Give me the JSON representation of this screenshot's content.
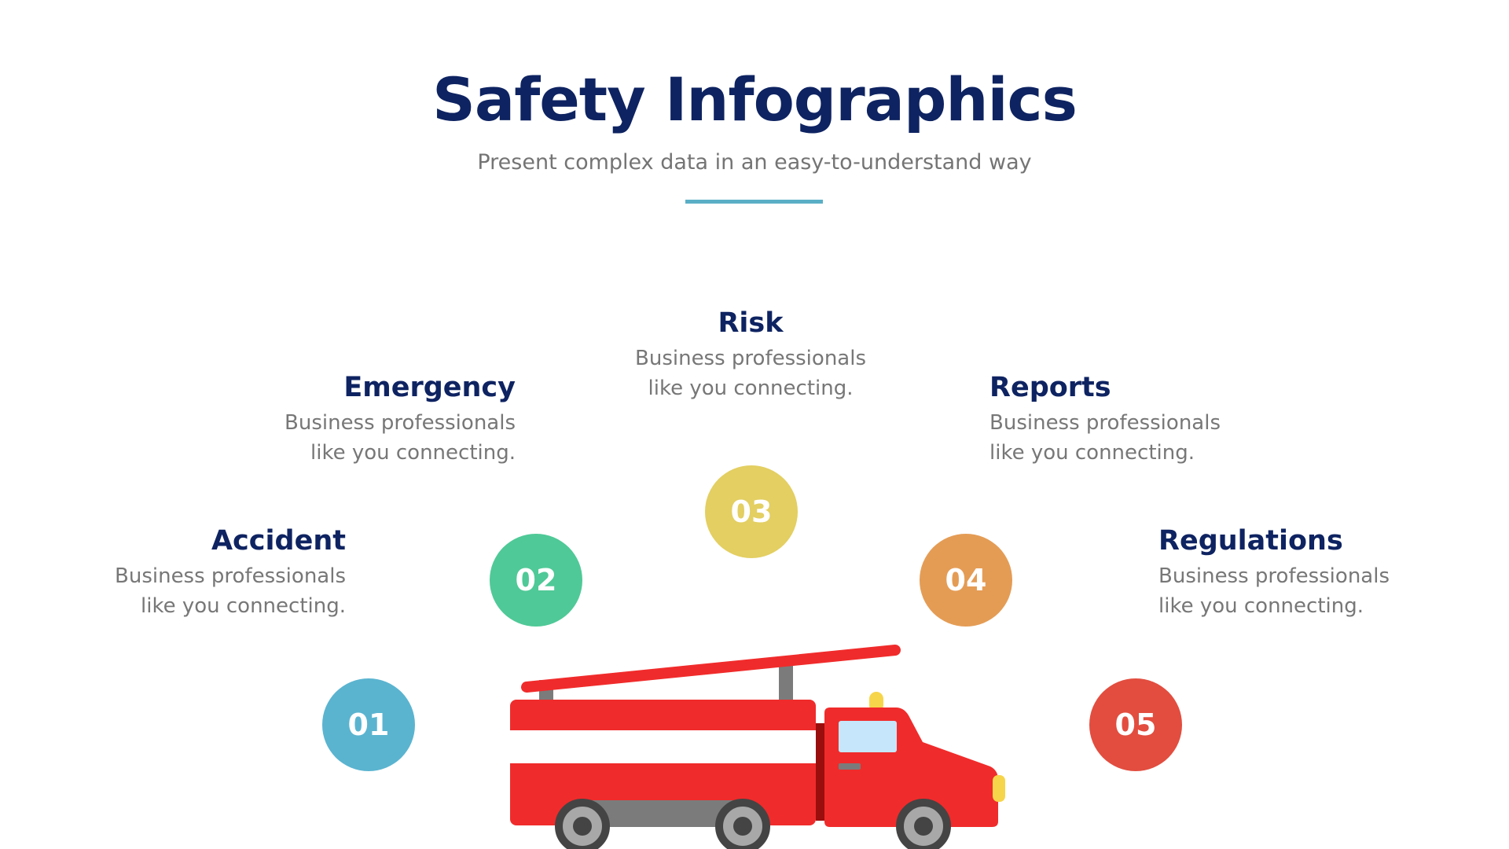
{
  "header": {
    "title": "Safety Infographics",
    "subtitle": "Present complex data in an easy-to-understand way",
    "accent": "#5aafc6"
  },
  "items": [
    {
      "number": "01",
      "title": "Accident",
      "description_line1": "Business professionals",
      "description_line2": "like you connecting.",
      "color": "#5ab4d0"
    },
    {
      "number": "02",
      "title": "Emergency",
      "description_line1": "Business professionals",
      "description_line2": "like you connecting.",
      "color": "#4fc997"
    },
    {
      "number": "03",
      "title": "Risk",
      "description_line1": "Business professionals",
      "description_line2": "like you connecting.",
      "color": "#e3cf62"
    },
    {
      "number": "04",
      "title": "Reports",
      "description_line1": "Business professionals",
      "description_line2": "like you connecting.",
      "color": "#e49c55"
    },
    {
      "number": "05",
      "title": "Regulations",
      "description_line1": "Business professionals",
      "description_line2": "like you connecting.",
      "color": "#e24d3f"
    }
  ],
  "illustration": {
    "icon": "fire-truck-icon"
  }
}
